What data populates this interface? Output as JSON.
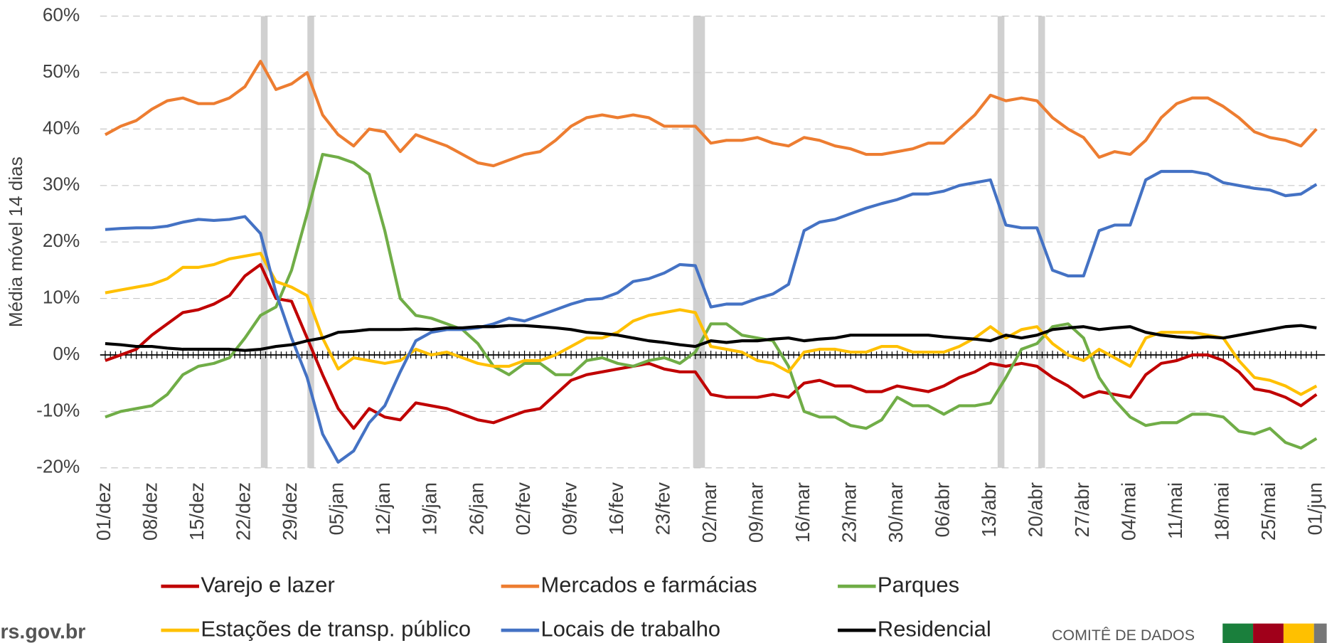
{
  "chart_data": {
    "type": "line",
    "y_label": "Média móvel 14 dias",
    "categories": [
      "01/dez",
      null,
      null,
      "08/dez",
      null,
      null,
      "15/dez",
      null,
      null,
      "22/dez",
      null,
      null,
      "29/dez",
      null,
      null,
      "05/jan",
      null,
      null,
      "12/jan",
      null,
      null,
      "19/jan",
      null,
      null,
      "26/jan",
      null,
      null,
      "02/fev",
      null,
      null,
      "09/fev",
      null,
      null,
      "16/fev",
      null,
      null,
      "23/fev",
      null,
      null,
      "02/mar",
      null,
      null,
      "09/mar",
      null,
      null,
      "16/mar",
      null,
      null,
      "23/mar",
      null,
      null,
      "30/mar",
      null,
      null,
      "06/abr",
      null,
      null,
      "13/abr",
      null,
      null,
      "20/abr",
      null,
      null,
      "27/abr",
      null,
      null,
      "04/mai",
      null,
      null,
      "11/mai",
      null,
      null,
      "18/mai",
      null,
      null,
      "25/mai",
      null,
      null,
      "01/jun"
    ],
    "series": [
      {
        "name": "Varejo e lazer",
        "color": "#c00000",
        "values": [
          -1,
          0,
          1,
          3.5,
          5.5,
          7.5,
          8,
          9,
          10.5,
          14,
          16,
          10,
          9.5,
          3,
          -3.5,
          -9.5,
          -13,
          -9.5,
          -11,
          -11.5,
          -8.5,
          -9,
          -9.5,
          -10.5,
          -11.5,
          -12,
          -11,
          -10,
          -9.5,
          -7,
          -4.5,
          -3.5,
          -3,
          -2.5,
          -2,
          -1.5,
          -2.5,
          -3,
          -3,
          -7,
          -7.5,
          -7.5,
          -7.5,
          -7,
          -7.5,
          -5,
          -4.5,
          -5.5,
          -5.5,
          -6.5,
          -6.5,
          -5.5,
          -6,
          -6.5,
          -5.5,
          -4,
          -3,
          -1.5,
          -2,
          -1.5,
          -2,
          -4,
          -5.5,
          -7.5,
          -6.5,
          -7,
          -7.5,
          -3.5,
          -1.5,
          -1,
          0,
          0,
          -1,
          -3,
          -6,
          -6.5,
          -7.5,
          -9,
          -7
        ]
      },
      {
        "name": "Mercados e farmácias",
        "color": "#ed7d31",
        "values": [
          39,
          40.5,
          41.5,
          43.5,
          45,
          45.5,
          44.5,
          44.5,
          45.5,
          47.5,
          52,
          47,
          48,
          50,
          42.5,
          39,
          37,
          40,
          39.5,
          36,
          39,
          38,
          37,
          35.5,
          34,
          33.5,
          34.5,
          35.5,
          36,
          38,
          40.5,
          42,
          42.5,
          42,
          42.5,
          42,
          40.5,
          40.5,
          40.5,
          37.5,
          38,
          38,
          38.5,
          37.5,
          37,
          38.5,
          38,
          37,
          36.5,
          35.5,
          35.5,
          36,
          36.5,
          37.5,
          37.5,
          40,
          42.5,
          46,
          45,
          45.5,
          45,
          42,
          40,
          38.5,
          35,
          36,
          35.5,
          38,
          42,
          44.5,
          45.5,
          45.5,
          44,
          42,
          39.5,
          38.5,
          38,
          37,
          40
        ]
      },
      {
        "name": "Parques",
        "color": "#70ad47",
        "values": [
          -11,
          -10,
          -9.5,
          -9,
          -7,
          -3.5,
          -2,
          -1.5,
          -0.5,
          3,
          7,
          8.5,
          15,
          25,
          35.5,
          35,
          34,
          32,
          22,
          10,
          7,
          6.5,
          5.5,
          4.5,
          2,
          -2,
          -3.5,
          -1.5,
          -1.5,
          -3.5,
          -3.5,
          -1,
          -0.5,
          -1.5,
          -2,
          -1,
          -0.5,
          -1.5,
          0.5,
          5.5,
          5.5,
          3.5,
          3,
          2.5,
          -2,
          -10,
          -11,
          -11,
          -12.5,
          -13,
          -11.5,
          -7.5,
          -9,
          -9,
          -10.5,
          -9,
          -9,
          -8.5,
          -4,
          1,
          2,
          5,
          5.5,
          3,
          -4,
          -8,
          -11,
          -12.5,
          -12,
          -12,
          -10.5,
          -10.5,
          -11,
          -13.5,
          -14,
          -13,
          -15.5,
          -16.5,
          -14.8
        ]
      },
      {
        "name": "Estações de transp. público",
        "color": "#ffc000",
        "values": [
          11,
          11.5,
          12,
          12.5,
          13.5,
          15.5,
          15.5,
          16,
          17,
          17.5,
          18,
          13,
          12,
          10.5,
          3,
          -2.5,
          -0.5,
          -1,
          -1.5,
          -1,
          1,
          0,
          0.5,
          -0.5,
          -1.5,
          -2,
          -2,
          -1,
          -1,
          0,
          1.5,
          3,
          3,
          4,
          6,
          7,
          7.5,
          8,
          7.5,
          1.5,
          1,
          0.5,
          -1,
          -1.5,
          -3,
          0.5,
          1,
          1,
          0.5,
          0.5,
          1.5,
          1.5,
          0.5,
          0.5,
          0.5,
          1.5,
          3,
          5,
          3,
          4.5,
          5,
          2,
          0,
          -1,
          1,
          -0.5,
          -2,
          3,
          4,
          4,
          4,
          3.5,
          3,
          -1,
          -4,
          -4.5,
          -5.5,
          -7,
          -5.5
        ]
      },
      {
        "name": "Locais de trabalho",
        "color": "#4472c4",
        "values": [
          22.2,
          22.4,
          22.5,
          22.5,
          22.8,
          23.5,
          24,
          23.8,
          24,
          24.5,
          21.5,
          11,
          3,
          -4,
          -14,
          -19,
          -17,
          -12,
          -9,
          -3,
          2.5,
          4,
          4.5,
          4.5,
          4.8,
          5.5,
          6.5,
          6,
          7,
          8,
          9,
          9.8,
          10,
          11,
          13,
          13.5,
          14.5,
          16,
          15.8,
          8.5,
          9,
          9,
          10,
          10.8,
          12.5,
          22,
          23.5,
          24,
          25,
          26,
          26.8,
          27.5,
          28.5,
          28.5,
          29,
          30,
          30.5,
          31,
          23,
          22.5,
          22.5,
          15,
          14,
          14,
          22,
          23,
          23,
          31,
          32.5,
          32.5,
          32.5,
          32,
          30.5,
          30,
          29.5,
          29.2,
          28.2,
          28.5,
          30.2
        ]
      },
      {
        "name": "Residencial",
        "color": "#000000",
        "values": [
          2,
          1.8,
          1.5,
          1.5,
          1.2,
          1,
          1,
          1,
          1,
          0.8,
          1,
          1.5,
          1.8,
          2.5,
          3,
          4,
          4.2,
          4.5,
          4.5,
          4.5,
          4.6,
          4.5,
          4.8,
          4.8,
          5,
          5,
          5.2,
          5.2,
          5,
          4.8,
          4.5,
          4,
          3.8,
          3.5,
          3,
          2.5,
          2.2,
          1.8,
          1.5,
          2.5,
          2.2,
          2.5,
          2.5,
          2.8,
          3,
          2.5,
          2.8,
          3,
          3.5,
          3.5,
          3.5,
          3.5,
          3.5,
          3.5,
          3.2,
          3,
          2.8,
          2.5,
          3.5,
          3,
          3.5,
          4.5,
          4.8,
          5,
          4.5,
          4.8,
          5,
          4,
          3.5,
          3.2,
          3,
          3.2,
          3,
          3.5,
          4,
          4.5,
          5,
          5.2,
          4.8
        ]
      }
    ],
    "ylim": [
      -20,
      60
    ],
    "yticks": [
      {
        "value": -20,
        "label": "-20%"
      },
      {
        "value": -10,
        "label": "-10%"
      },
      {
        "value": 0,
        "label": "0%"
      },
      {
        "value": 10,
        "label": "10%"
      },
      {
        "value": 20,
        "label": "20%"
      },
      {
        "value": 30,
        "label": "30%"
      },
      {
        "value": 40,
        "label": "40%"
      },
      {
        "value": 50,
        "label": "50%"
      },
      {
        "value": 60,
        "label": "60%"
      }
    ],
    "grid": true,
    "legend": "bottom"
  },
  "footer": {
    "site": "rs.gov.br",
    "committee": "COMITÊ DE DADOS"
  }
}
